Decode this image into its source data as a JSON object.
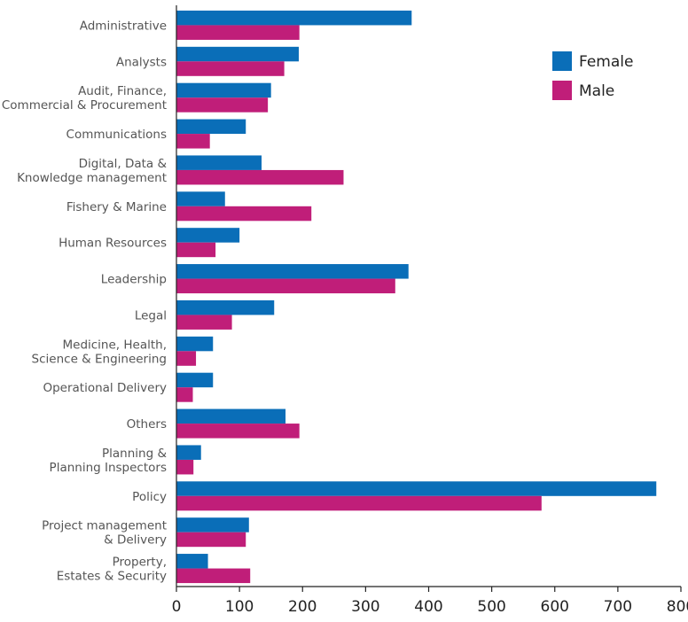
{
  "chart_data": {
    "type": "bar",
    "orientation": "horizontal",
    "categories": [
      "Administrative",
      "Analysts",
      "Audit, Finance,\nCommercial & Procurement",
      "Communications",
      "Digital, Data &\nKnowledge management",
      "Fishery & Marine",
      "Human Resources",
      "Leadership",
      "Legal",
      "Medicine, Health,\nScience & Engineering",
      "Operational Delivery",
      "Others",
      "Planning &\nPlanning Inspectors",
      "Policy",
      "Project management\n& Delivery",
      "Property,\nEstates & Security"
    ],
    "series": [
      {
        "name": "Female",
        "color": "#0a6eb8",
        "values": [
          373,
          194,
          150,
          110,
          135,
          77,
          100,
          368,
          155,
          58,
          58,
          173,
          39,
          761,
          115,
          50
        ]
      },
      {
        "name": "Male",
        "color": "#c01e79",
        "values": [
          195,
          171,
          145,
          53,
          265,
          214,
          62,
          347,
          88,
          31,
          26,
          195,
          27,
          579,
          110,
          117
        ]
      }
    ],
    "xlim": [
      0,
      800
    ],
    "xticks": [
      0,
      100,
      200,
      300,
      400,
      500,
      600,
      700,
      800
    ],
    "legend_position": "top-right",
    "grid": false
  }
}
